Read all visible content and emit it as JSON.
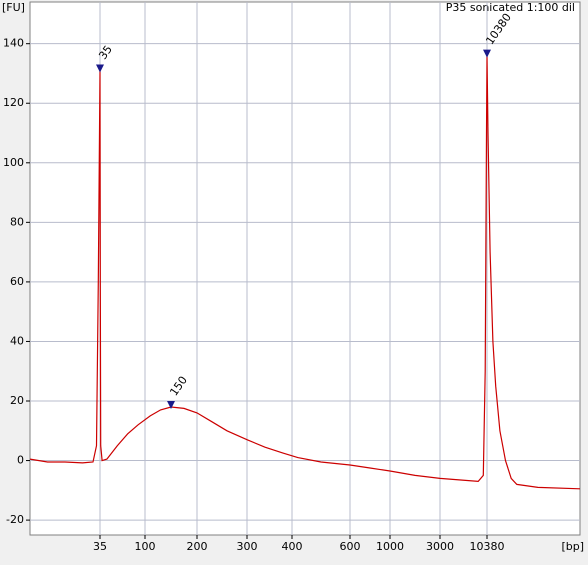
{
  "chart_data": {
    "type": "line",
    "title": "P35 sonicated 1:100 dil",
    "ylabel": "[FU]",
    "xlabel": "[bp]",
    "x": [
      15,
      20,
      25,
      30,
      33,
      34,
      34.5,
      35,
      35.5,
      36,
      38,
      45,
      50,
      60,
      75,
      90,
      110,
      130,
      150,
      175,
      200,
      230,
      260,
      300,
      340,
      380,
      420,
      500,
      600,
      800,
      1000,
      2000,
      3000,
      6000,
      9000,
      9800,
      10100,
      10300,
      10380,
      10450,
      10600,
      10800,
      11000,
      11300,
      11700,
      12100,
      12500,
      14000,
      17000
    ],
    "series": [
      {
        "name": "P35 sonicated 1:100 dil",
        "color": "#cc0000",
        "values": [
          0.5,
          -0.5,
          -0.5,
          -0.8,
          -0.5,
          5,
          60,
          131,
          60,
          5,
          0,
          0.5,
          2,
          5,
          9,
          12,
          15,
          17,
          18,
          17.5,
          16,
          13,
          10,
          7,
          4.5,
          2.5,
          1,
          -0.5,
          -1.5,
          -2.5,
          -3.5,
          -5,
          -6,
          -6.5,
          -7,
          -5,
          30,
          110,
          136,
          110,
          70,
          40,
          25,
          10,
          0,
          -6,
          -8,
          -9,
          -9.5
        ]
      }
    ],
    "annotations": [
      {
        "text": "35",
        "x": 35,
        "y": 131,
        "color": "#2e7d32"
      },
      {
        "text": "150",
        "x": 150,
        "y": 18,
        "color": "#000000"
      },
      {
        "text": "10380",
        "x": 10380,
        "y": 136,
        "color": "#7b3fb0"
      }
    ],
    "xlim": [
      15,
      17000
    ],
    "xticks": [
      35,
      100,
      200,
      300,
      400,
      600,
      1000,
      3000,
      10380
    ],
    "ylim": [
      -25,
      154
    ],
    "yticks": [
      -20,
      0,
      20,
      40,
      60,
      80,
      100,
      120,
      140
    ],
    "grid": true
  }
}
